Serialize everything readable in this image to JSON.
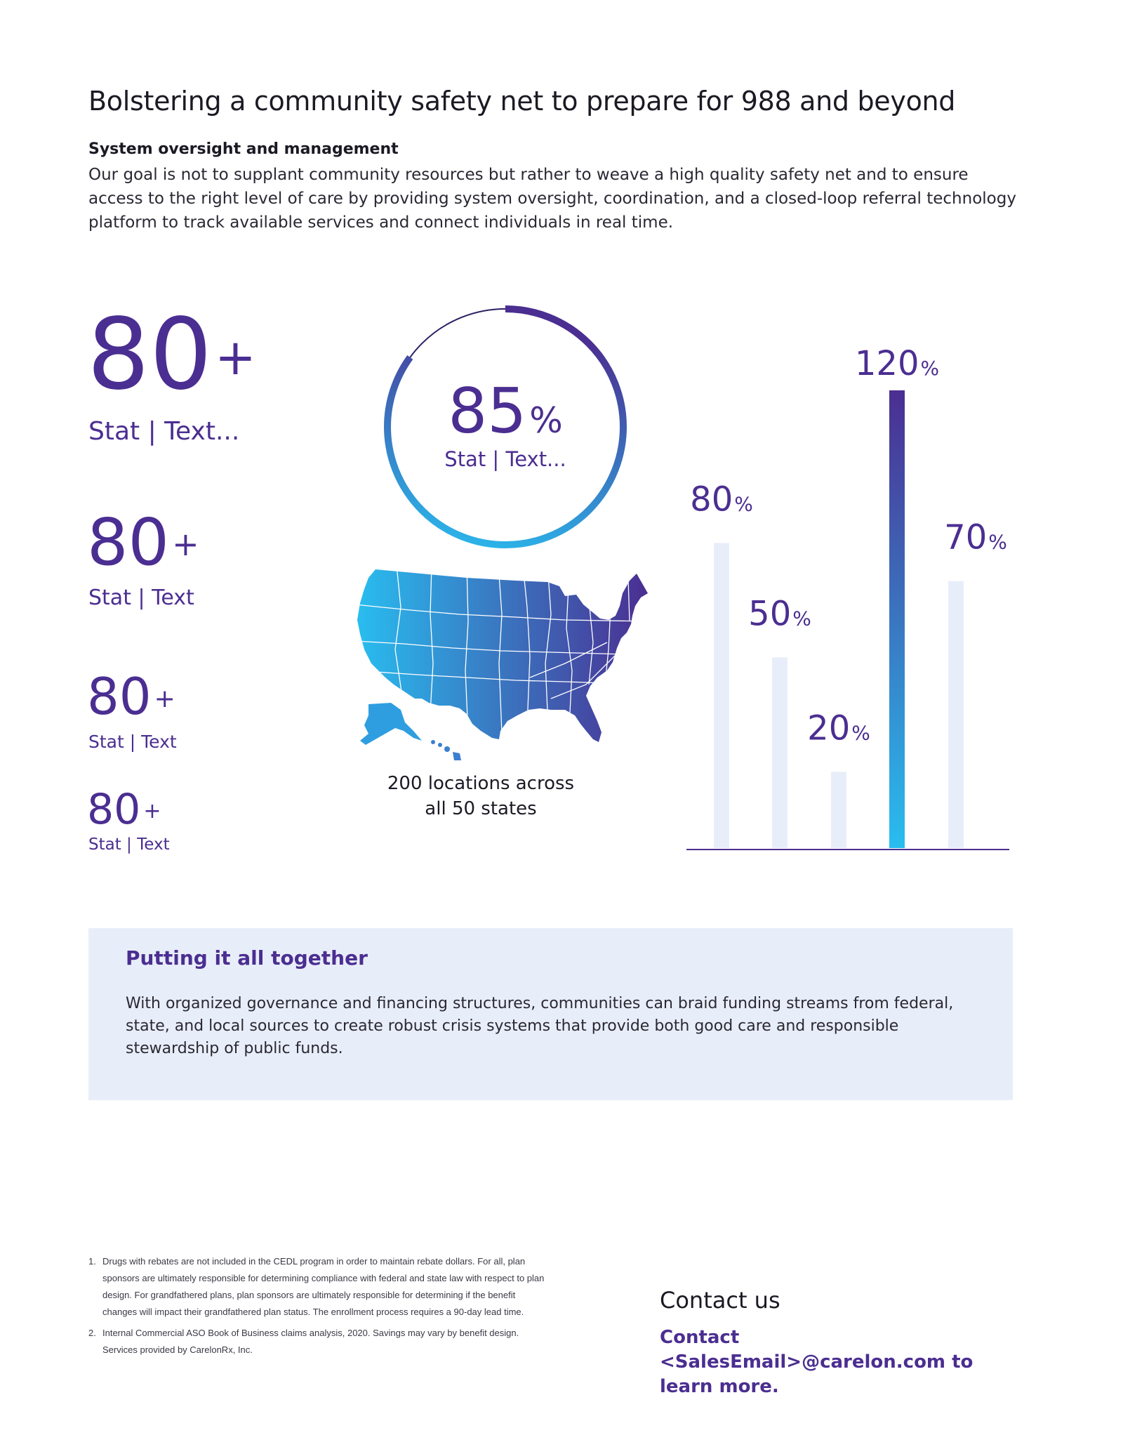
{
  "page": {
    "title": "Bolstering a community safety net to prepare for 988 and beyond",
    "subheading": "System oversight and management",
    "intro": "Our goal is not to supplant community resources but rather to weave a high quality safety net and to ensure access to the right level of care by providing system oversight, coordination, and a closed-loop referral technology platform to track available services and connect individuals in real time."
  },
  "stats": [
    {
      "number": "80",
      "suffix": "+",
      "label": "Stat | Text..."
    },
    {
      "number": "80",
      "suffix": "+",
      "label": "Stat | Text"
    },
    {
      "number": "80",
      "suffix": "+",
      "label": "Stat | Text"
    },
    {
      "number": "80",
      "suffix": "+",
      "label": "Stat | Text"
    }
  ],
  "ring": {
    "number": "85",
    "suffix": "%",
    "label": "Stat | Text...",
    "value": 85
  },
  "map": {
    "caption_line1": "200 locations across",
    "caption_line2": "all 50 states"
  },
  "chart_data": {
    "type": "bar",
    "categories": [
      "",
      "",
      "",
      "",
      ""
    ],
    "values": [
      80,
      50,
      20,
      120,
      70
    ],
    "labels": [
      {
        "number": "80",
        "suffix": "%"
      },
      {
        "number": "50",
        "suffix": "%"
      },
      {
        "number": "20",
        "suffix": "%"
      },
      {
        "number": "120",
        "suffix": "%"
      },
      {
        "number": "70",
        "suffix": "%"
      }
    ],
    "highlight_index": 3,
    "ylim": [
      0,
      120
    ],
    "grid": false,
    "colors": {
      "bar": "#e8eef9",
      "highlight_top": "#4b2e91",
      "highlight_bottom": "#29bdef",
      "baseline": "#4b2e91"
    }
  },
  "together": {
    "heading": "Putting it all together",
    "body": "With organized governance and financing structures, communities can braid funding streams from federal, state, and local sources to create robust crisis systems that provide both good care and responsible stewardship of public funds."
  },
  "footnotes": [
    {
      "num": "1.",
      "text": "Drugs with rebates are not included in the CEDL program in order to maintain rebate dollars. For all, plan sponsors are ultimately responsible for determining compliance with federal and state law with respect to plan design. For grandfathered plans, plan sponsors are ultimately responsible for determining if the benefit changes will impact their grandfathered plan status. The enrollment process requires a 90-day lead time."
    },
    {
      "num": "2.",
      "text": "Internal Commercial ASO Book of Business claims analysis, 2020. Savings may vary by benefit design. Services provided by CarelonRx, Inc."
    }
  ],
  "contact": {
    "heading": "Contact us",
    "line": "Contact <SalesEmail>@carelon.com to learn more."
  },
  "colors": {
    "purple": "#4b2e91",
    "cyan": "#29bdef",
    "panel": "#e8eef9"
  }
}
